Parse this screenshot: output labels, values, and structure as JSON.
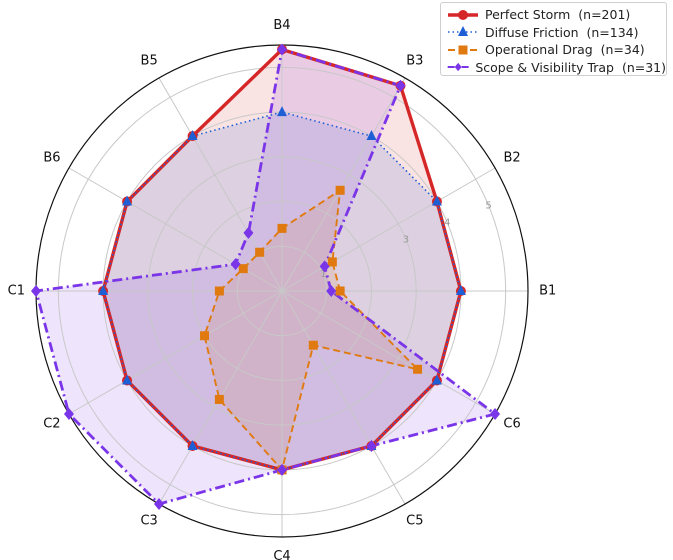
{
  "chart_data": {
    "type": "radar",
    "axes": [
      "B1",
      "B2",
      "B3",
      "B4",
      "B5",
      "B6",
      "C1",
      "C2",
      "C3",
      "C4",
      "C5",
      "C6"
    ],
    "rlim": [
      0,
      5.5
    ],
    "rticks": [
      1,
      2,
      3,
      4,
      5
    ],
    "rtick_labels": [
      "1",
      "",
      "3",
      "4",
      "5"
    ],
    "grid": true,
    "legend_position": "top-right",
    "series": [
      {
        "name": "Perfect Storm  (n=201)",
        "color": "#d62728",
        "linestyle": "solid",
        "marker": "circle",
        "values": [
          4.0,
          4.0,
          5.3,
          5.4,
          4.0,
          4.0,
          4.0,
          4.0,
          4.0,
          4.0,
          4.0,
          4.0
        ]
      },
      {
        "name": "Diffuse Friction  (n=134)",
        "color": "#1f5fd6",
        "linestyle": "dotted",
        "marker": "triangle",
        "values": [
          4.0,
          4.0,
          4.0,
          4.0,
          4.0,
          4.0,
          4.0,
          4.0,
          4.0,
          4.0,
          4.0,
          4.0
        ]
      },
      {
        "name": "Operational Drag  (n=34)",
        "color": "#e07a10",
        "linestyle": "dashed",
        "marker": "square",
        "values": [
          1.3,
          1.3,
          2.6,
          1.4,
          1.0,
          1.0,
          1.4,
          2.0,
          2.8,
          4.0,
          1.4,
          3.5
        ]
      },
      {
        "name": "Scope & Visibility Trap  (n=31)",
        "color": "#7b35e8",
        "linestyle": "dashdot",
        "marker": "diamond",
        "values": [
          1.1,
          1.1,
          5.3,
          5.4,
          1.5,
          1.2,
          5.5,
          5.5,
          5.5,
          4.0,
          4.0,
          5.5
        ]
      }
    ]
  }
}
